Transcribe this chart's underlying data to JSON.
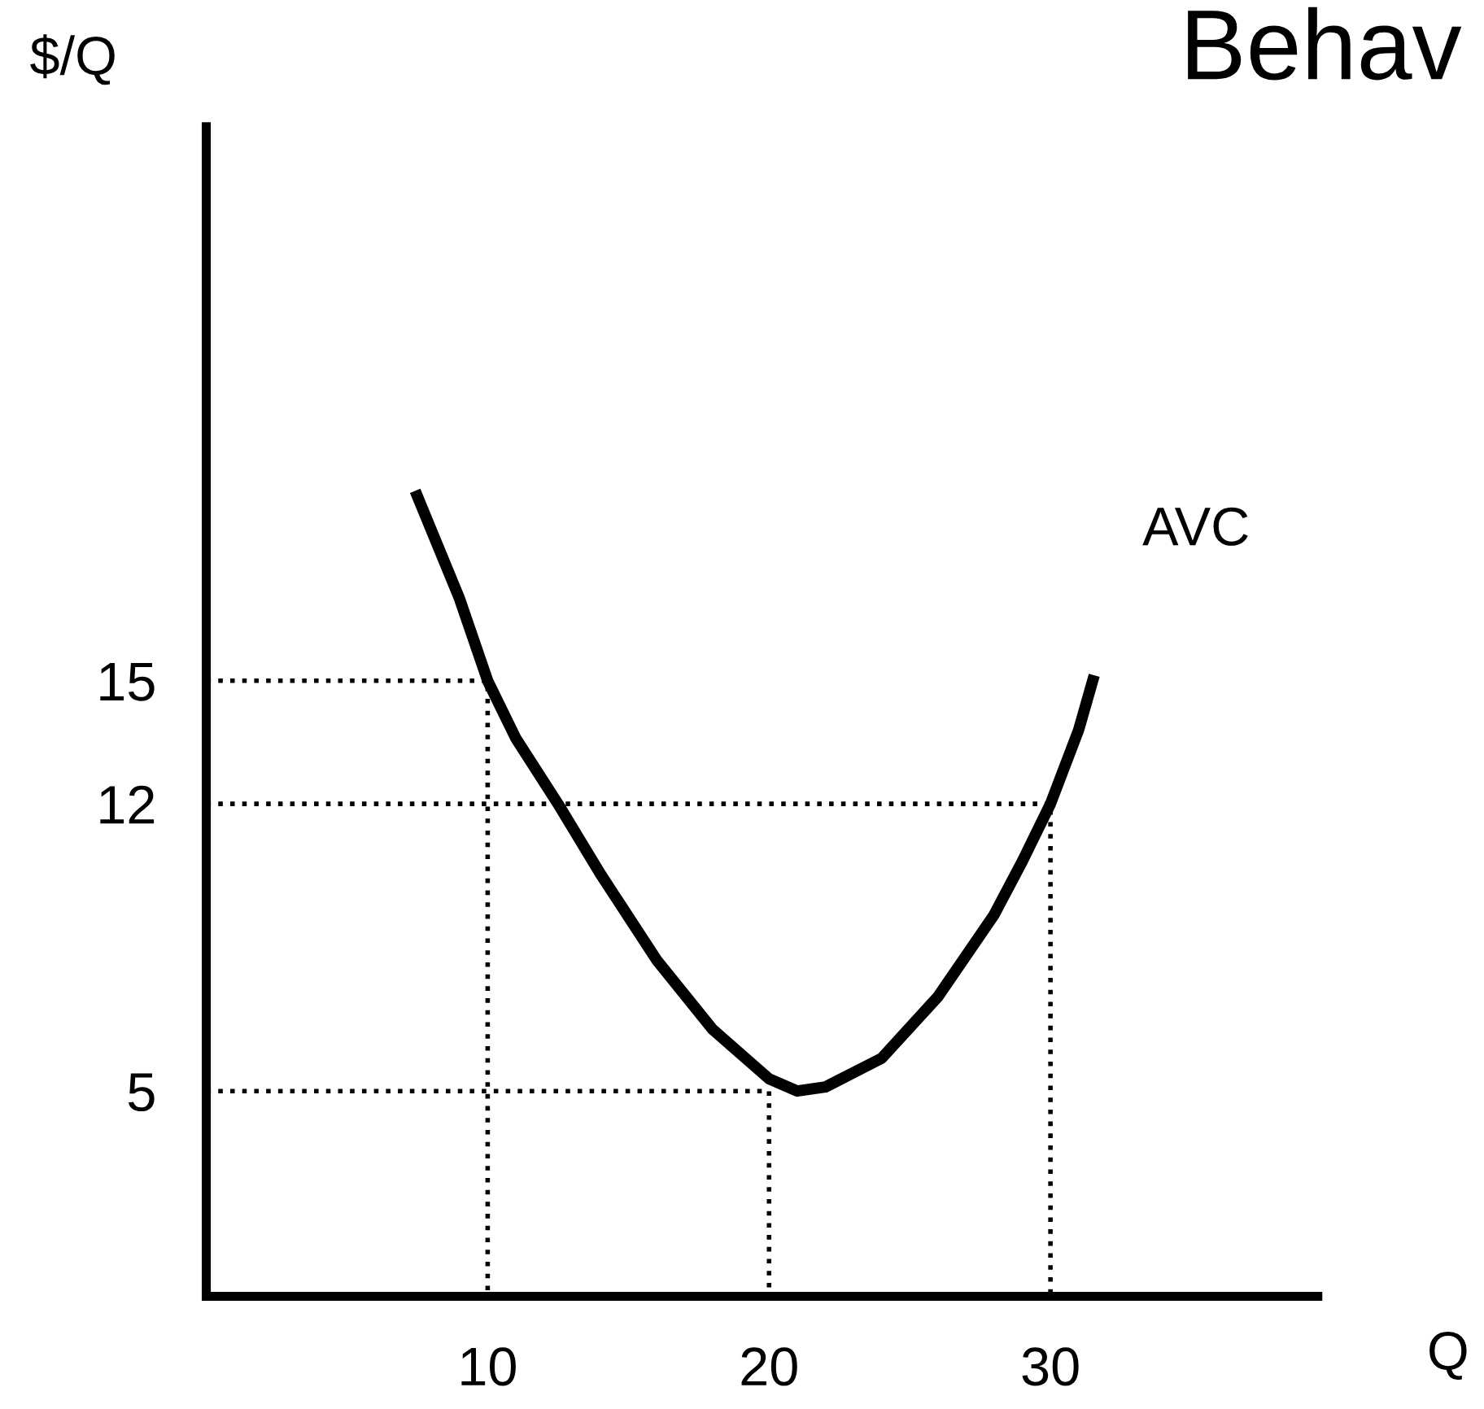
{
  "chart_data": {
    "type": "line",
    "title": "Behav",
    "xlabel": "Q",
    "ylabel": "$/Q",
    "xlim": [
      0,
      39.5
    ],
    "ylim": [
      0,
      28.5
    ],
    "xticks": [
      10,
      20,
      30
    ],
    "yticks": [
      5,
      12,
      15
    ],
    "grid": false,
    "legend": false,
    "marker": "none",
    "series": [
      {
        "name": "AVC",
        "color": "#000000",
        "line_style": "solid",
        "x": [
          7.5,
          9,
          10,
          11,
          12.5,
          14,
          16,
          18,
          20,
          21,
          22,
          24,
          26,
          28,
          29,
          30,
          31,
          31.5
        ],
        "values": [
          19.5,
          17,
          15,
          13.6,
          12,
          10.3,
          8.2,
          6.5,
          5.3,
          5,
          5.1,
          5.8,
          7.3,
          9.3,
          10.6,
          12,
          13.8,
          15
        ]
      },
      {
        "color": "#000000",
        "line_style": "dotted",
        "x": [
          0,
          10,
          10
        ],
        "values": [
          15,
          15,
          0
        ]
      },
      {
        "color": "#000000",
        "line_style": "dotted",
        "x": [
          0,
          30,
          30
        ],
        "values": [
          12,
          12,
          0
        ]
      },
      {
        "color": "#000000",
        "line_style": "dotted",
        "x": [
          0,
          20,
          20
        ],
        "values": [
          5,
          5,
          0
        ]
      }
    ]
  }
}
